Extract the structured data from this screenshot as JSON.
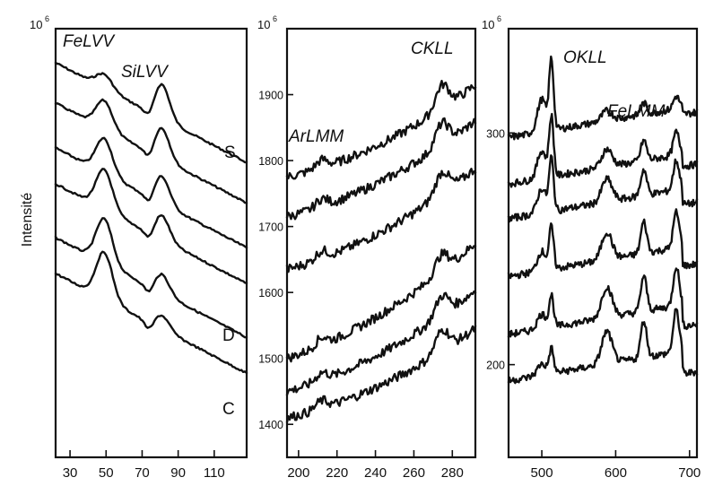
{
  "chart_data": [
    {
      "type": "line",
      "scale": {
        "base": "10",
        "exponent": "6"
      },
      "ylabel": "Intensité",
      "x_ticks": [
        "30",
        "50",
        "70",
        "90",
        "110"
      ],
      "xlim": [
        22,
        128
      ],
      "peak_labels": [
        "FeLVV",
        "SiLVV"
      ],
      "curve_labels": [
        "S",
        "D",
        "C"
      ],
      "series": [
        {
          "offset": 0.0,
          "features": {
            "si_peak": 1.0,
            "fe_peak": 0.3
          }
        },
        {
          "offset": 1.0,
          "features": {
            "si_peak": 0.9,
            "fe_peak": 0.6
          }
        },
        {
          "offset": 2.0,
          "features": {
            "si_peak": 0.8,
            "fe_peak": 0.75
          }
        },
        {
          "offset": 3.0,
          "features": {
            "si_peak": 0.7,
            "fe_peak": 0.85
          }
        },
        {
          "offset": 4.0,
          "features": {
            "si_peak": 0.55,
            "fe_peak": 0.95
          }
        },
        {
          "offset": 5.0,
          "features": {
            "si_peak": 0.4,
            "fe_peak": 1.0
          }
        }
      ]
    },
    {
      "type": "line",
      "scale": {
        "base": "10",
        "exponent": "6"
      },
      "x_ticks": [
        "200",
        "220",
        "240",
        "260",
        "280"
      ],
      "y_ticks": [
        "1900",
        "1800",
        "1700",
        "1600",
        "1500",
        "1400"
      ],
      "xlim": [
        194,
        292
      ],
      "ylim": [
        1350,
        2000
      ],
      "peak_labels": [
        "ArLMM",
        "CKLL"
      ],
      "series": [
        {
          "start": 1775,
          "peak": 1945,
          "end": 1890
        },
        {
          "start": 1715,
          "peak": 1885,
          "end": 1840
        },
        {
          "start": 1635,
          "peak": 1810,
          "end": 1770
        },
        {
          "start": 1500,
          "peak": 1680,
          "end": 1670
        },
        {
          "start": 1450,
          "peak": 1620,
          "end": 1590
        },
        {
          "start": 1410,
          "peak": 1570,
          "end": 1525
        }
      ]
    },
    {
      "type": "line",
      "scale": {
        "base": "10",
        "exponent": "6"
      },
      "x_ticks": [
        "500",
        "600",
        "700"
      ],
      "y_ticks": [
        "300",
        "200"
      ],
      "xlim": [
        455,
        710
      ],
      "ylim": [
        160,
        345
      ],
      "peak_labels": [
        "OKLL",
        "FeLMM"
      ],
      "series": [
        {
          "base": 298,
          "o_peak": 1.0,
          "fe_peak": 0.3
        },
        {
          "base": 278,
          "o_peak": 0.85,
          "fe_peak": 0.55
        },
        {
          "base": 263,
          "o_peak": 0.75,
          "fe_peak": 0.7
        },
        {
          "base": 238,
          "o_peak": 0.6,
          "fe_peak": 0.85
        },
        {
          "base": 213,
          "o_peak": 0.45,
          "fe_peak": 0.95
        },
        {
          "base": 193,
          "o_peak": 0.35,
          "fe_peak": 1.0
        }
      ]
    }
  ]
}
